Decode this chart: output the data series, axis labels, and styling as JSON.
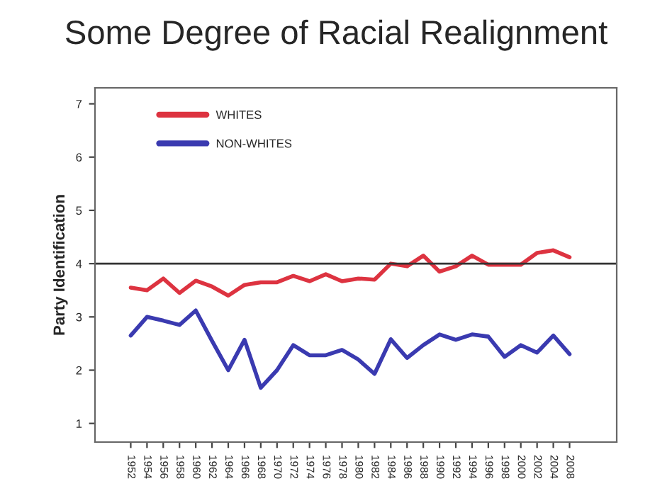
{
  "chart_data": {
    "type": "line",
    "title": "Some Degree of Racial Realignment",
    "ylabel": "Party Identification",
    "categories": [
      "1952",
      "1954",
      "1956",
      "1958",
      "1960",
      "1962",
      "1964",
      "1966",
      "1968",
      "1970",
      "1972",
      "1974",
      "1976",
      "1978",
      "1980",
      "1982",
      "1984",
      "1986",
      "1988",
      "1990",
      "1992",
      "1994",
      "1996",
      "1998",
      "2000",
      "2002",
      "2004",
      "2008"
    ],
    "series": [
      {
        "name": "WHITES",
        "color": "#dd3340",
        "values": [
          3.55,
          3.5,
          3.72,
          3.45,
          3.68,
          3.57,
          3.4,
          3.6,
          3.65,
          3.65,
          3.77,
          3.67,
          3.8,
          3.67,
          3.72,
          3.7,
          4.0,
          3.95,
          4.15,
          3.85,
          3.95,
          4.15,
          3.98,
          3.98,
          3.98,
          4.2,
          4.25,
          4.12
        ]
      },
      {
        "name": "NON-WHITES",
        "color": "#3a3ab0",
        "values": [
          2.65,
          3.0,
          2.93,
          2.85,
          3.12,
          2.55,
          2.0,
          2.57,
          1.67,
          2.0,
          2.47,
          2.28,
          2.28,
          2.38,
          2.2,
          1.93,
          2.58,
          2.23,
          2.47,
          2.67,
          2.57,
          2.67,
          2.63,
          2.25,
          2.47,
          2.33,
          2.65,
          2.3
        ]
      }
    ],
    "ylim": [
      0.65,
      7.3
    ],
    "yticks": [
      1,
      2,
      3,
      4,
      5,
      6,
      7
    ],
    "ref_lines": [
      {
        "axis": "y",
        "value": 4,
        "color": "#333333"
      }
    ],
    "grid": false,
    "legend": "top left",
    "marker": "none",
    "line_style": "solid"
  }
}
